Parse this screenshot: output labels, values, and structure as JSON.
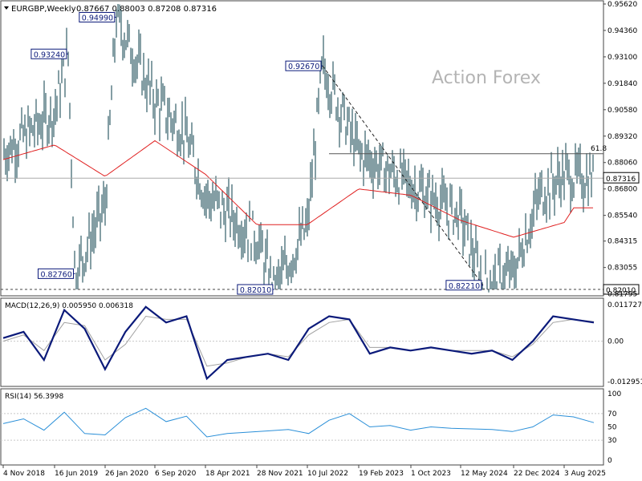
{
  "header": {
    "symbol_label": "EURGBP,Weekly",
    "ohlc_label": "0.87667 0.88003 0.87208 0.87316"
  },
  "watermark": "Action Forex",
  "colors": {
    "background": "#ffffff",
    "bar": "#1f4f5a",
    "moving_average": "#e02020",
    "macd": "#0b1a7a",
    "signal": "#a0a0a0",
    "rsi": "#2a8fd8",
    "grid": "#c8c8c8",
    "label_border": "#0b1a7a",
    "label_text": "#0b1a7a",
    "watermark": "#b4b4b4"
  },
  "chart_data": [
    {
      "type": "candlestick",
      "panel": "price",
      "timeframe": "Weekly",
      "ylim": [
        0.8201,
        0.9562
      ],
      "y_ticks": [
        "0.95620",
        "0.94360",
        "0.93100",
        "0.91840",
        "0.90580",
        "0.89320",
        "0.88060",
        "0.86800",
        "0.85540",
        "0.84315",
        "0.83055",
        "0.81795"
      ],
      "x_ticks": [
        "4 Nov 2018",
        "16 Jun 2019",
        "26 Jan 2020",
        "6 Sep 2020",
        "18 Apr 2021",
        "28 Nov 2021",
        "10 Jul 2022",
        "19 Feb 2023",
        "1 Oct 2023",
        "12 May 2024",
        "22 Dec 2024",
        "3 Aug 2025"
      ],
      "price_path": {
        "x": [
          "4 Nov 2018",
          "16 Jun 2019",
          "Aug 2019",
          "Sep 2019",
          "26 Jan 2020",
          "Mar 2020",
          "6 Sep 2020",
          "Jan 2021",
          "18 Apr 2021",
          "28 Nov 2021",
          "Feb 2022",
          "10 Jul 2022",
          "Sep 2022",
          "19 Feb 2023",
          "1 Oct 2023",
          "12 May 2024",
          "Aug 2024",
          "22 Dec 2024",
          "Apr 2025",
          "3 Aug 2025",
          "Sep 2025"
        ],
        "y": [
          0.885,
          0.905,
          0.9324,
          0.8276,
          0.86,
          0.9499,
          0.91,
          0.895,
          0.865,
          0.845,
          0.8201,
          0.85,
          0.9267,
          0.885,
          0.87,
          0.855,
          0.8221,
          0.828,
          0.865,
          0.875,
          0.8732
        ]
      },
      "moving_average": {
        "x": [
          "4 Nov 2018",
          "16 Jun 2019",
          "26 Jan 2020",
          "6 Sep 2020",
          "18 Apr 2021",
          "28 Nov 2021",
          "10 Jul 2022",
          "19 Feb 2023",
          "1 Oct 2023",
          "12 May 2024",
          "22 Dec 2024",
          "3 Aug 2025",
          "Sep 2025"
        ],
        "y": [
          0.882,
          0.889,
          0.874,
          0.891,
          0.875,
          0.851,
          0.851,
          0.868,
          0.865,
          0.853,
          0.845,
          0.852,
          0.859
        ]
      },
      "labels": [
        {
          "text": "0.93240",
          "x": "Aug 2019",
          "y": 0.9324
        },
        {
          "text": "0.94990",
          "x": "Mar 2020",
          "y": 0.9499
        },
        {
          "text": "0.92670",
          "x": "Sep 2022",
          "y": 0.9267
        },
        {
          "text": "0.82760",
          "x": "Sep 2019",
          "y": 0.8276
        },
        {
          "text": "0.82010",
          "x": "Feb 2022",
          "y": 0.8201
        },
        {
          "text": "0.82210",
          "x": "Aug 2024",
          "y": 0.8221
        }
      ],
      "fib_level": {
        "label": "61.8",
        "y": 0.8848
      },
      "current_price": {
        "label": "0.87316",
        "y": 0.87316
      },
      "support_level": {
        "label": "0.82010",
        "y": 0.8201
      }
    },
    {
      "type": "line",
      "panel": "macd",
      "title": "MACD(12,26,9) 0.005950 0.006318",
      "y_ticks": [
        "0.011727",
        "0.00",
        "-0.012951"
      ],
      "ylim": [
        -0.012951,
        0.011727
      ],
      "series": [
        {
          "name": "MACD",
          "values": [
            0.001,
            0.003,
            -0.006,
            0.01,
            0.004,
            -0.009,
            0.003,
            0.011,
            0.006,
            0.008,
            -0.012,
            -0.006,
            -0.005,
            -0.004,
            -0.006,
            0.004,
            0.008,
            0.007,
            -0.004,
            -0.002,
            -0.003,
            -0.002,
            -0.003,
            -0.004,
            -0.003,
            -0.006,
            0.0,
            0.008,
            0.007,
            0.006
          ]
        },
        {
          "name": "Signal",
          "values": [
            0.0,
            0.002,
            -0.003,
            0.006,
            0.005,
            -0.006,
            -0.001,
            0.008,
            0.007,
            0.007,
            -0.008,
            -0.007,
            -0.005,
            -0.004,
            -0.005,
            0.002,
            0.006,
            0.007,
            -0.002,
            -0.002,
            -0.003,
            -0.002,
            -0.003,
            -0.003,
            -0.003,
            -0.005,
            -0.001,
            0.006,
            0.007,
            0.0063
          ]
        }
      ]
    },
    {
      "type": "line",
      "panel": "rsi",
      "title": "RSI(14) 56.3998",
      "y_ticks": [
        "100",
        "70",
        "50",
        "30",
        "0"
      ],
      "ylim": [
        0,
        100
      ],
      "series": [
        {
          "name": "RSI",
          "values": [
            55,
            62,
            45,
            72,
            40,
            38,
            64,
            78,
            58,
            66,
            35,
            40,
            42,
            44,
            46,
            40,
            60,
            70,
            50,
            52,
            45,
            50,
            48,
            47,
            46,
            43,
            50,
            68,
            65,
            56.4
          ]
        }
      ]
    }
  ]
}
